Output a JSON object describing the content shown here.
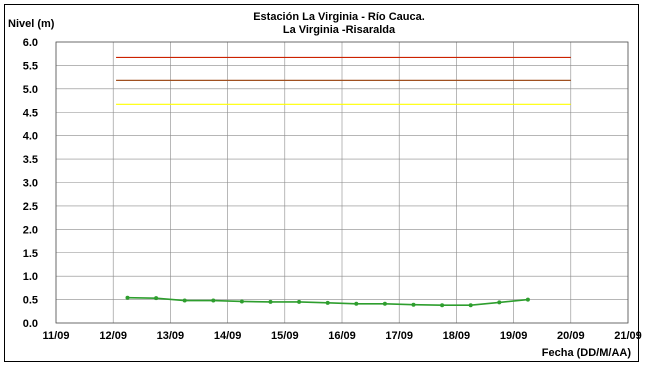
{
  "chart_data": {
    "type": "line",
    "title": "Estación La Virginia  - Río Cauca.",
    "subtitle": "La Virginia -Risaralda",
    "ylabel": "Nivel (m)",
    "xlabel": "Fecha (DD/M/AA)",
    "ylim": [
      0,
      6.0
    ],
    "y_ticks": [
      "0.0",
      "0.5",
      "1.0",
      "1.5",
      "2.0",
      "2.5",
      "3.0",
      "3.5",
      "4.0",
      "4.5",
      "5.0",
      "5.5",
      "6.0"
    ],
    "x_ticks": [
      "11/09",
      "12/09",
      "13/09",
      "14/09",
      "15/09",
      "16/09",
      "17/09",
      "18/09",
      "19/09",
      "20/09",
      "21/09"
    ],
    "grid": true,
    "colors": {
      "level_series": "#2e9e2e",
      "threshold_red": "#cc2200",
      "threshold_brown": "#a05020",
      "threshold_yellow": "#ffff00",
      "grid": "#8a8a8a"
    },
    "thresholds": [
      {
        "y": 5.67,
        "x_start": 12.05,
        "x_end": 20.0,
        "color_key": "threshold_red"
      },
      {
        "y": 5.18,
        "x_start": 12.05,
        "x_end": 20.0,
        "color_key": "threshold_brown"
      },
      {
        "y": 4.67,
        "x_start": 12.05,
        "x_end": 20.0,
        "color_key": "threshold_yellow"
      }
    ],
    "series": [
      {
        "x": [
          12.25,
          12.75,
          13.25,
          13.75,
          14.25,
          14.75,
          15.25,
          15.75,
          16.25,
          16.75,
          17.25,
          17.75,
          18.25,
          18.75,
          19.25
        ],
        "values": [
          0.54,
          0.53,
          0.48,
          0.48,
          0.46,
          0.45,
          0.45,
          0.43,
          0.41,
          0.41,
          0.39,
          0.38,
          0.38,
          0.44,
          0.5
        ]
      }
    ]
  }
}
